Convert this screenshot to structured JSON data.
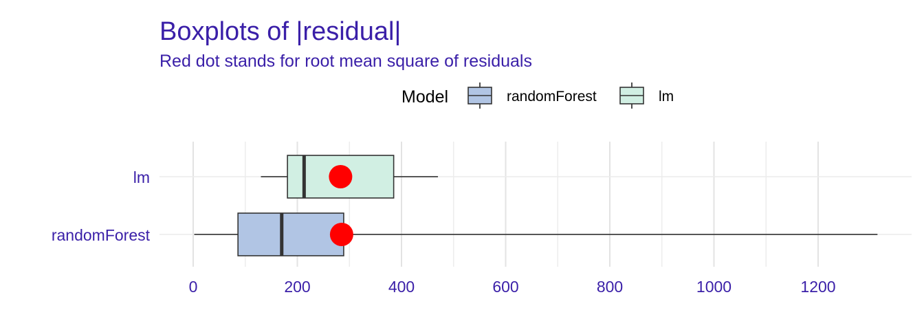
{
  "chart_data": {
    "type": "boxplot",
    "orientation": "horizontal",
    "title": "Boxplots of |residual|",
    "subtitle": "Red dot stands for root mean square of residuals",
    "legend": {
      "title": "Model",
      "position": "top",
      "entries": [
        "randomForest",
        "lm"
      ]
    },
    "categories": [
      "lm",
      "randomForest"
    ],
    "xlim": [
      0,
      1380
    ],
    "xticks": [
      0,
      200,
      400,
      600,
      800,
      1000,
      1200
    ],
    "grid": true,
    "series": [
      {
        "name": "lm",
        "min": 130,
        "q1": 181,
        "median": 213,
        "q3": 385,
        "max": 470,
        "rmse": 283,
        "fill": "#d1efe3"
      },
      {
        "name": "randomForest",
        "min": 2,
        "q1": 86,
        "median": 170,
        "q3": 289,
        "max": 1314,
        "rmse": 285,
        "fill": "#b1c5e4"
      }
    ],
    "rmse_dot_color": "#ff0000"
  }
}
